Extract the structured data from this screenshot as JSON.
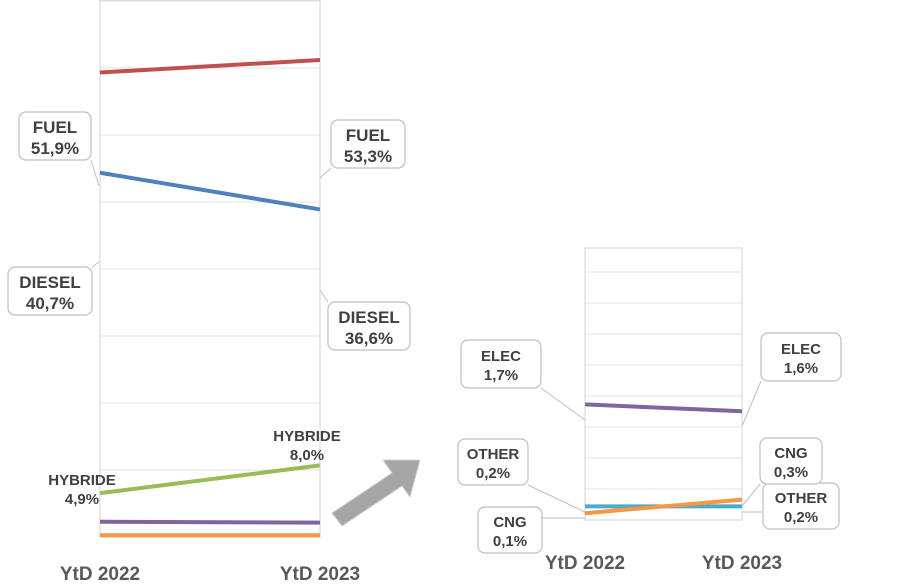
{
  "chart_data": [
    {
      "type": "line",
      "categories": [
        "YtD 2022",
        "YtD 2023"
      ],
      "ylim": [
        0,
        60
      ],
      "grid": true,
      "series": [
        {
          "name": "FUEL",
          "values": [
            51.9,
            53.3
          ],
          "labels": [
            "51,9%",
            "53,3%"
          ],
          "color": "#c0504d"
        },
        {
          "name": "DIESEL",
          "values": [
            40.7,
            36.6
          ],
          "labels": [
            "40,7%",
            "36,6%"
          ],
          "color": "#4f81bd"
        },
        {
          "name": "HYBRIDE",
          "values": [
            4.9,
            8.0
          ],
          "labels": [
            "4,9%",
            "8,0%"
          ],
          "color": "#9bbb59"
        },
        {
          "name": "",
          "values": [
            1.7,
            1.6
          ],
          "labels": [
            "",
            ""
          ],
          "color": "#8064a2"
        },
        {
          "name": "",
          "values": [
            0.2,
            0.2
          ],
          "labels": [
            "",
            ""
          ],
          "color": "#f79646"
        }
      ]
    },
    {
      "type": "line",
      "categories": [
        "YtD 2022",
        "YtD 2023"
      ],
      "ylim": [
        0,
        4
      ],
      "grid": true,
      "series": [
        {
          "name": "ELEC",
          "values": [
            1.7,
            1.6
          ],
          "labels": [
            "1,7%",
            "1,6%"
          ],
          "color": "#8064a2"
        },
        {
          "name": "OTHER",
          "values": [
            0.2,
            0.2
          ],
          "labels": [
            "0,2%",
            "0,2%"
          ],
          "color": "#4bacc6"
        },
        {
          "name": "CNG",
          "values": [
            0.1,
            0.3
          ],
          "labels": [
            "0,1%",
            "0,3%"
          ],
          "color": "#f79646"
        }
      ]
    }
  ]
}
